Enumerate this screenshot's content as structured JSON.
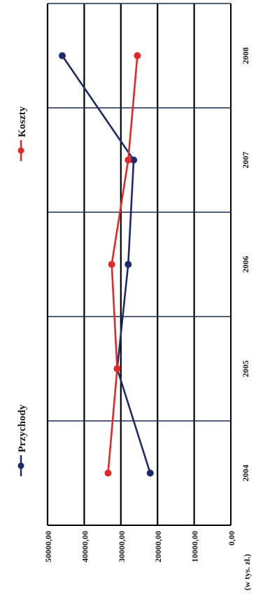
{
  "chart_data": {
    "type": "line",
    "orientation": "rotated-90-ccw",
    "categories": [
      "2004",
      "2005",
      "2006",
      "2007",
      "2008"
    ],
    "y_tick_labels": [
      "0,00",
      "10000,00",
      "20000,00",
      "30000,00",
      "40000,00",
      "50000,00"
    ],
    "ylim": [
      0,
      50000
    ],
    "ylabel": "(w tys. zł.)",
    "grid": true,
    "legend_position": "top",
    "series": [
      {
        "name": "Przychody",
        "color": "#1f2a6b",
        "values": [
          22000,
          31000,
          28000,
          26500,
          46000
        ]
      },
      {
        "name": "Koszty",
        "color": "#e02a2a",
        "values": [
          33500,
          31000,
          32500,
          28000,
          25500
        ]
      }
    ]
  }
}
